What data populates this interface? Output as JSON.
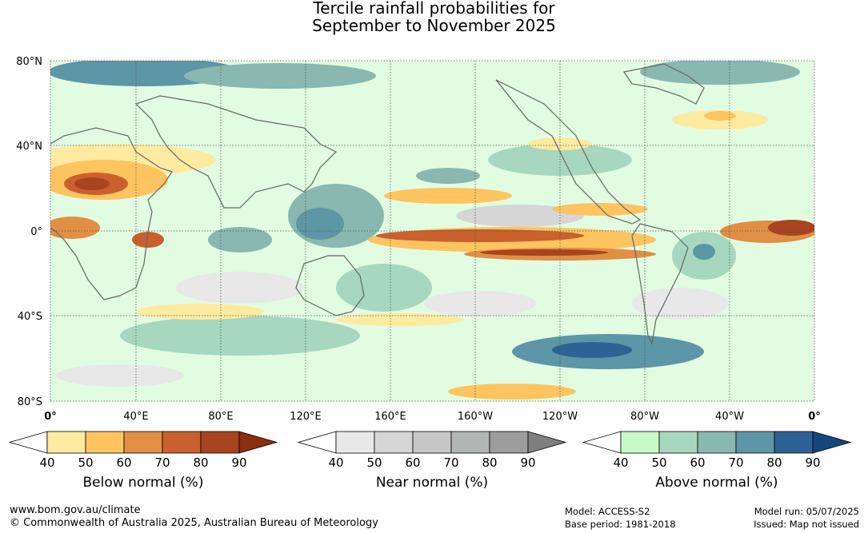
{
  "title_line1": "Tercile rainfall probabilities for",
  "title_line2": "September to November 2025",
  "map": {
    "lat_labels": [
      "80°N",
      "40°N",
      "0°",
      "40°S",
      "80°S"
    ],
    "lon_labels": [
      "0°",
      "40°E",
      "80°E",
      "120°E",
      "160°E",
      "160°W",
      "120°W",
      "80°W",
      "40°W",
      "0°"
    ]
  },
  "legends": [
    {
      "name": "below",
      "title": "Below normal (%)",
      "ticks": [
        "40",
        "50",
        "60",
        "70",
        "80",
        "90"
      ],
      "colors": [
        "#ffffff",
        "#feeaa0",
        "#fdc460",
        "#e08f45",
        "#c9602e",
        "#a8441f",
        "#8b2e12"
      ]
    },
    {
      "name": "near",
      "title": "Near normal (%)",
      "ticks": [
        "40",
        "50",
        "60",
        "70",
        "80",
        "90"
      ],
      "colors": [
        "#ffffff",
        "#e8e8e8",
        "#d6d6d6",
        "#c6c6c6",
        "#b1b5b3",
        "#9d9d9d",
        "#7f7f7f"
      ]
    },
    {
      "name": "above",
      "title": "Above normal (%)",
      "ticks": [
        "40",
        "50",
        "60",
        "70",
        "80",
        "90"
      ],
      "colors": [
        "#ffffff",
        "#c8fac8",
        "#a7d7bf",
        "#88b8b0",
        "#5d96a6",
        "#2d6295",
        "#14477d"
      ]
    }
  ],
  "footer": {
    "website": "www.bom.gov.au/climate",
    "copyright": "© Commonwealth of Australia 2025, Australian Bureau of Meteorology",
    "model": "Model: ACCESS-S2",
    "base_period": "Base period: 1981-2018",
    "model_run": "Model run: 05/07/2025",
    "issued": "Issued: Map not issued"
  }
}
